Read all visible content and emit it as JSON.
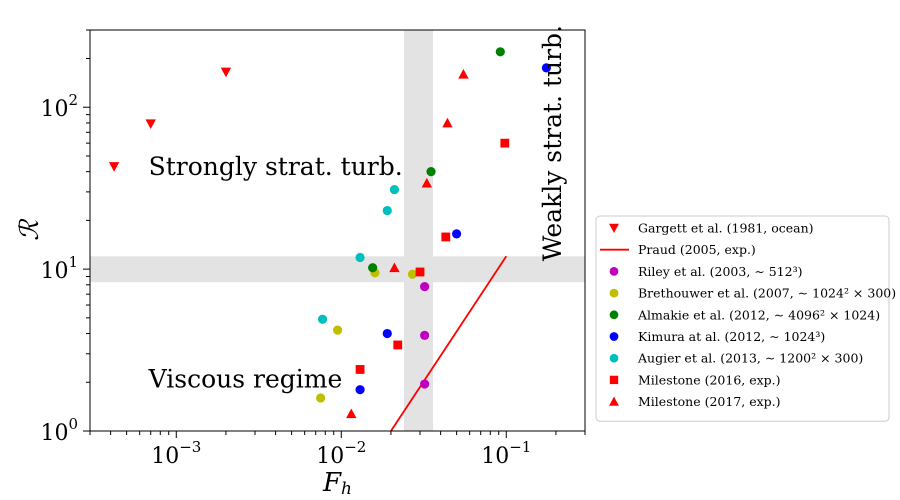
{
  "chart_data": {
    "type": "scatter",
    "xlabel": "F_h",
    "ylabel": "ℛ",
    "xscale": "log",
    "yscale": "log",
    "xlim": [
      0.0003,
      0.3
    ],
    "ylim": [
      1,
      300
    ],
    "x_ticks": [
      {
        "value": 0.001,
        "base": "10",
        "exp": "−3"
      },
      {
        "value": 0.01,
        "base": "10",
        "exp": "−2"
      },
      {
        "value": 0.1,
        "base": "10",
        "exp": "−1"
      }
    ],
    "y_ticks": [
      {
        "value": 1,
        "base": "10",
        "exp": "0"
      },
      {
        "value": 10,
        "base": "10",
        "exp": "1"
      },
      {
        "value": 100,
        "base": "10",
        "exp": "2"
      }
    ],
    "grid": false,
    "legend_position": "lower-right-outside",
    "shaded_bands": [
      {
        "axis": "y",
        "from": 8.3,
        "to": 12
      },
      {
        "axis": "x",
        "from": 0.024,
        "to": 0.036
      }
    ],
    "annotations": [
      {
        "id": "strong",
        "text": "Strongly strat. turb.",
        "x": 0.00068,
        "y": 43
      },
      {
        "id": "viscous",
        "text": "Viscous regime",
        "x": 0.00068,
        "y": 2.1
      },
      {
        "id": "weak",
        "text": "Weakly strat. turb.",
        "x": 0.19,
        "y": 60,
        "rotate": -90
      }
    ],
    "series": [
      {
        "name": "Gargett et al. (1981, ocean)",
        "marker": "triangle-down",
        "color": "#ff0000",
        "points": [
          [
            0.00042,
            43
          ],
          [
            0.0007,
            79
          ],
          [
            0.002,
            165
          ]
        ]
      },
      {
        "name": "Praud (2005, exp.)",
        "marker": "line",
        "color": "#ff0000",
        "points": [
          [
            0.02,
            1
          ],
          [
            0.1,
            12
          ]
        ]
      },
      {
        "name": "Riley et al. (2003, ∼ 512³)",
        "marker": "circle",
        "color": "#bf00bf",
        "points": [
          [
            0.032,
            7.8
          ],
          [
            0.032,
            3.9
          ],
          [
            0.032,
            1.95
          ]
        ]
      },
      {
        "name": "Brethouwer et al. (2007, ∼ 1024² × 300)",
        "marker": "circle",
        "color": "#bfbf00",
        "points": [
          [
            0.0075,
            1.6
          ],
          [
            0.0095,
            4.2
          ],
          [
            0.016,
            9.5
          ],
          [
            0.027,
            9.3
          ]
        ]
      },
      {
        "name": "Almakie et al. (2012, ∼ 4096² × 1024)",
        "marker": "circle",
        "color": "#008000",
        "points": [
          [
            0.0155,
            10.2
          ],
          [
            0.035,
            40
          ],
          [
            0.092,
            220
          ]
        ]
      },
      {
        "name": "Kimura at al. (2012, ∼ 1024³)",
        "marker": "circle",
        "color": "#0000ff",
        "points": [
          [
            0.013,
            1.8
          ],
          [
            0.019,
            4.0
          ],
          [
            0.05,
            16.5
          ],
          [
            0.175,
            175
          ]
        ]
      },
      {
        "name": "Augier et al. (2013, ∼ 1200² × 300)",
        "marker": "circle",
        "color": "#00bfbf",
        "points": [
          [
            0.0077,
            4.9
          ],
          [
            0.013,
            11.8
          ],
          [
            0.019,
            23
          ],
          [
            0.021,
            31
          ]
        ]
      },
      {
        "name": "Milestone (2016, exp.)",
        "marker": "square",
        "color": "#ff0000",
        "points": [
          [
            0.013,
            2.4
          ],
          [
            0.022,
            3.4
          ],
          [
            0.03,
            9.6
          ],
          [
            0.043,
            15.8
          ],
          [
            0.098,
            60
          ]
        ]
      },
      {
        "name": "Milestone (2017, exp.)",
        "marker": "triangle-up",
        "color": "#ff0000",
        "points": [
          [
            0.0115,
            1.28
          ],
          [
            0.021,
            10.2
          ],
          [
            0.033,
            34
          ],
          [
            0.044,
            80
          ],
          [
            0.055,
            160
          ]
        ]
      }
    ],
    "band_color": "#e3e3e3"
  }
}
